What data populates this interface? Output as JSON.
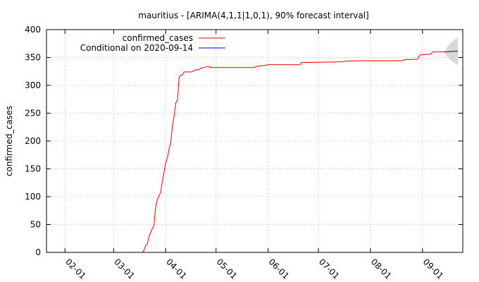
{
  "chart_data": {
    "type": "line",
    "title": "mauritius -  [ARIMA(4,1,1|1,0,1), 90% forecast interval]",
    "xlabel": "",
    "ylabel": "confirmed_cases",
    "ylim": [
      0,
      400
    ],
    "xlim": [
      "2020-01-21",
      "2020-09-25"
    ],
    "y_ticks": [
      0,
      50,
      100,
      150,
      200,
      250,
      300,
      350,
      400
    ],
    "x_ticks": [
      {
        "date": "2020-02-01",
        "label": "02-01"
      },
      {
        "date": "2020-03-01",
        "label": "03-01"
      },
      {
        "date": "2020-04-01",
        "label": "04-01"
      },
      {
        "date": "2020-05-01",
        "label": "05-01"
      },
      {
        "date": "2020-06-01",
        "label": "06-01"
      },
      {
        "date": "2020-07-01",
        "label": "07-01"
      },
      {
        "date": "2020-08-01",
        "label": "08-01"
      },
      {
        "date": "2020-09-01",
        "label": "09-01"
      }
    ],
    "grid": true,
    "legend_position": "top-left",
    "series": [
      {
        "name": "confirmed_cases",
        "color": "#e00000",
        "points": [
          [
            "2020-03-18",
            0
          ],
          [
            "2020-03-19",
            3
          ],
          [
            "2020-03-20",
            12
          ],
          [
            "2020-03-21",
            14
          ],
          [
            "2020-03-22",
            28
          ],
          [
            "2020-03-23",
            36
          ],
          [
            "2020-03-24",
            42
          ],
          [
            "2020-03-25",
            48
          ],
          [
            "2020-03-26",
            81
          ],
          [
            "2020-03-27",
            94
          ],
          [
            "2020-03-28",
            102
          ],
          [
            "2020-03-29",
            107
          ],
          [
            "2020-03-30",
            128
          ],
          [
            "2020-03-31",
            143
          ],
          [
            "2020-04-01",
            161
          ],
          [
            "2020-04-02",
            169
          ],
          [
            "2020-04-03",
            186
          ],
          [
            "2020-04-04",
            196
          ],
          [
            "2020-04-05",
            227
          ],
          [
            "2020-04-06",
            244
          ],
          [
            "2020-04-07",
            268
          ],
          [
            "2020-04-08",
            273
          ],
          [
            "2020-04-09",
            314
          ],
          [
            "2020-04-10",
            318
          ],
          [
            "2020-04-11",
            319
          ],
          [
            "2020-04-12",
            324
          ],
          [
            "2020-04-13",
            324
          ],
          [
            "2020-04-16",
            324
          ],
          [
            "2020-04-17",
            325
          ],
          [
            "2020-04-19",
            328
          ],
          [
            "2020-04-21",
            328
          ],
          [
            "2020-04-22",
            331
          ],
          [
            "2020-04-24",
            332
          ],
          [
            "2020-04-26",
            334
          ],
          [
            "2020-04-28",
            332
          ],
          [
            "2020-05-15",
            332
          ],
          [
            "2020-05-24",
            332
          ],
          [
            "2020-05-25",
            334
          ],
          [
            "2020-05-29",
            335
          ],
          [
            "2020-06-01",
            337
          ],
          [
            "2020-06-20",
            337
          ],
          [
            "2020-06-21",
            341
          ],
          [
            "2020-07-15",
            342
          ],
          [
            "2020-07-16",
            343
          ],
          [
            "2020-07-25",
            344
          ],
          [
            "2020-08-20",
            344
          ],
          [
            "2020-08-21",
            346
          ],
          [
            "2020-08-29",
            347
          ],
          [
            "2020-08-30",
            352
          ],
          [
            "2020-08-31",
            355
          ],
          [
            "2020-09-01",
            355
          ],
          [
            "2020-09-06",
            356
          ],
          [
            "2020-09-07",
            360
          ],
          [
            "2020-09-14",
            360
          ]
        ]
      },
      {
        "name": "Conditional on 2020-09-14",
        "color": "#0000d0",
        "points": [
          [
            "2020-09-14",
            360
          ],
          [
            "2020-09-16",
            360.3
          ],
          [
            "2020-09-18",
            360.7
          ],
          [
            "2020-09-20",
            361.1
          ],
          [
            "2020-09-22",
            361.4
          ]
        ],
        "interval_90": [
          [
            "2020-09-14",
            360,
            360
          ],
          [
            "2020-09-15",
            354,
            366
          ],
          [
            "2020-09-17",
            347,
            374
          ],
          [
            "2020-09-19",
            342,
            379
          ],
          [
            "2020-09-21",
            338,
            384
          ],
          [
            "2020-09-22",
            336,
            386
          ]
        ],
        "interval_color": "#d8d8d8"
      }
    ]
  }
}
